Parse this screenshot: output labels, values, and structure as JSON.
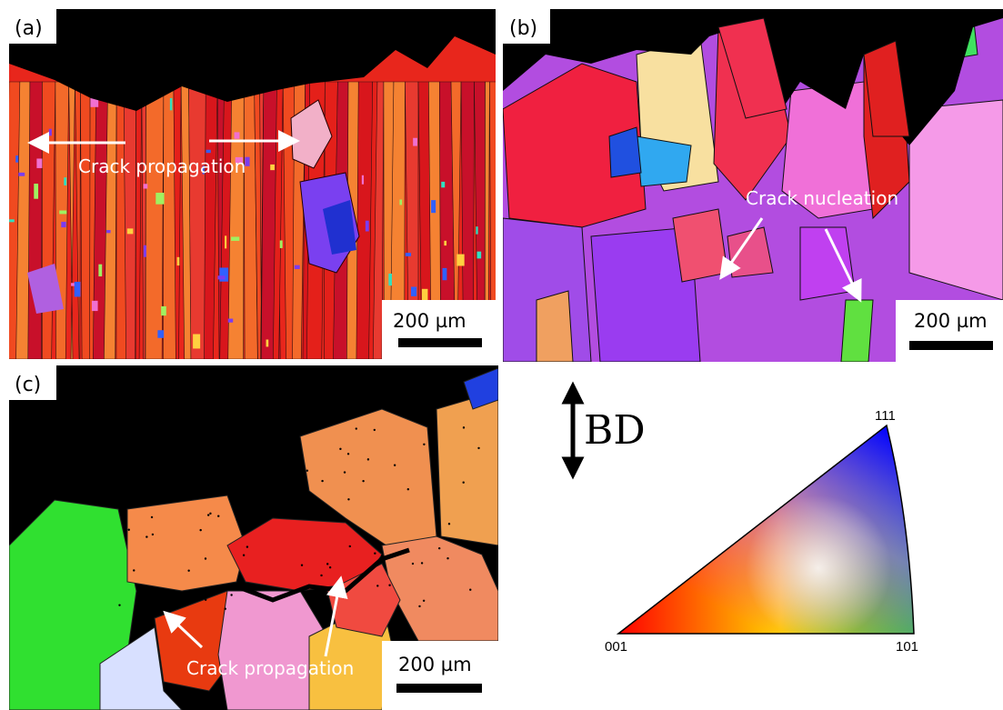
{
  "panels": [
    {
      "label": "(a)",
      "annotations": [
        "Crack propagation"
      ],
      "scale_bar": "200 µm"
    },
    {
      "label": "(b)",
      "annotations": [
        "Crack nucleation"
      ],
      "scale_bar": "200 µm"
    },
    {
      "label": "(c)",
      "annotations": [
        "Crack propagation"
      ],
      "scale_bar": "200 µm"
    }
  ],
  "legend": {
    "direction": "BD",
    "corners": [
      "001",
      "101",
      "111"
    ]
  }
}
